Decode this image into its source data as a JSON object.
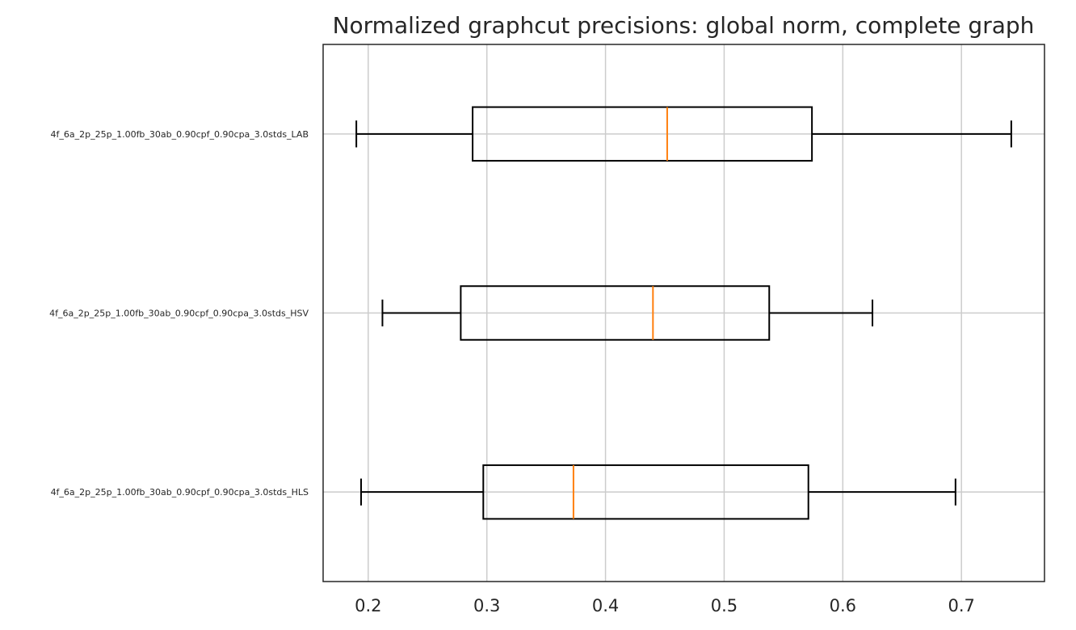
{
  "chart_data": {
    "type": "boxplot",
    "orientation": "horizontal",
    "title": "Normalized graphcut precisions: global norm, complete graph",
    "xlabel": "",
    "ylabel": "",
    "xlim": [
      0.162,
      0.77
    ],
    "x_ticks": [
      0.2,
      0.3,
      0.4,
      0.5,
      0.6,
      0.7
    ],
    "x_tick_labels": [
      "0.2",
      "0.3",
      "0.4",
      "0.5",
      "0.6",
      "0.7"
    ],
    "grid": true,
    "categories": [
      "4f_6a_2p_25p_1.00fb_30ab_0.90cpf_0.90cpa_3.0stds_HLS",
      "4f_6a_2p_25p_1.00fb_30ab_0.90cpf_0.90cpa_3.0stds_HSV",
      "4f_6a_2p_25p_1.00fb_30ab_0.90cpf_0.90cpa_3.0stds_LAB"
    ],
    "boxes": [
      {
        "category": "4f_6a_2p_25p_1.00fb_30ab_0.90cpf_0.90cpa_3.0stds_HLS",
        "whisker_low": 0.194,
        "q1": 0.297,
        "median": 0.373,
        "q3": 0.571,
        "whisker_high": 0.695
      },
      {
        "category": "4f_6a_2p_25p_1.00fb_30ab_0.90cpf_0.90cpa_3.0stds_HSV",
        "whisker_low": 0.212,
        "q1": 0.278,
        "median": 0.44,
        "q3": 0.538,
        "whisker_high": 0.625
      },
      {
        "category": "4f_6a_2p_25p_1.00fb_30ab_0.90cpf_0.90cpa_3.0stds_LAB",
        "whisker_low": 0.19,
        "q1": 0.288,
        "median": 0.452,
        "q3": 0.574,
        "whisker_high": 0.742
      }
    ],
    "colors": {
      "box": "#000000",
      "median": "#ff7f0e",
      "grid": "#cccccc",
      "axes": "#262626"
    }
  }
}
